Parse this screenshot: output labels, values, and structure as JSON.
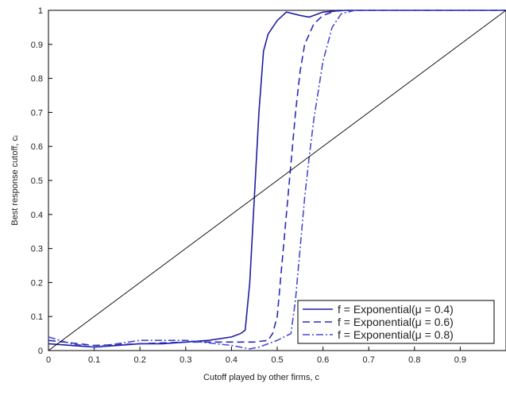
{
  "chart_data": {
    "type": "line",
    "xlabel": "Cutoff played by other firms, c",
    "ylabel": "Best response cutoff, cᵢ",
    "xlim": [
      0,
      1
    ],
    "ylim": [
      0,
      1
    ],
    "xticks": [
      0,
      0.1,
      0.2,
      0.3,
      0.4,
      0.5,
      0.6,
      0.7,
      0.8,
      0.9
    ],
    "yticks": [
      0,
      0.1,
      0.2,
      0.3,
      0.4,
      0.5,
      0.6,
      0.7,
      0.8,
      0.9,
      1
    ],
    "legend": "lower right",
    "series": [
      {
        "name": "f = Exponential(μ = 0.4)",
        "color": "#1e1ea0",
        "dash": "solid",
        "x": [
          0,
          0.05,
          0.1,
          0.15,
          0.2,
          0.25,
          0.3,
          0.35,
          0.4,
          0.42,
          0.43,
          0.44,
          0.45,
          0.46,
          0.47,
          0.48,
          0.5,
          0.52,
          0.55,
          0.57,
          0.6,
          0.65,
          1
        ],
        "values": [
          0.02,
          0.015,
          0.01,
          0.015,
          0.02,
          0.02,
          0.025,
          0.03,
          0.04,
          0.05,
          0.06,
          0.2,
          0.45,
          0.7,
          0.88,
          0.93,
          0.97,
          0.995,
          0.985,
          0.98,
          0.995,
          1,
          1
        ]
      },
      {
        "name": "f = Exponential(μ = 0.6)",
        "color": "#2a2ab8",
        "dash": "dashed",
        "x": [
          0,
          0.1,
          0.2,
          0.3,
          0.4,
          0.45,
          0.48,
          0.49,
          0.5,
          0.51,
          0.52,
          0.53,
          0.54,
          0.55,
          0.56,
          0.58,
          0.6,
          0.63,
          1
        ],
        "values": [
          0.03,
          0.015,
          0.02,
          0.025,
          0.025,
          0.025,
          0.03,
          0.05,
          0.1,
          0.25,
          0.4,
          0.55,
          0.7,
          0.82,
          0.9,
          0.96,
          0.985,
          1,
          1
        ]
      },
      {
        "name": "f = Exponential(μ = 0.8)",
        "color": "#4a4ad0",
        "dash": "dashdot",
        "x": [
          0,
          0.05,
          0.1,
          0.2,
          0.3,
          0.4,
          0.44,
          0.46,
          0.5,
          0.53,
          0.54,
          0.55,
          0.56,
          0.57,
          0.58,
          0.6,
          0.62,
          0.64,
          0.67,
          1
        ],
        "values": [
          0.04,
          0.02,
          0.01,
          0.03,
          0.03,
          0.015,
          0.005,
          0.01,
          0.03,
          0.05,
          0.15,
          0.3,
          0.45,
          0.57,
          0.68,
          0.85,
          0.95,
          0.99,
          1,
          1
        ]
      },
      {
        "color": "#000000",
        "dash": "solid",
        "x": [
          0,
          1
        ],
        "values": [
          0,
          1
        ]
      }
    ]
  }
}
